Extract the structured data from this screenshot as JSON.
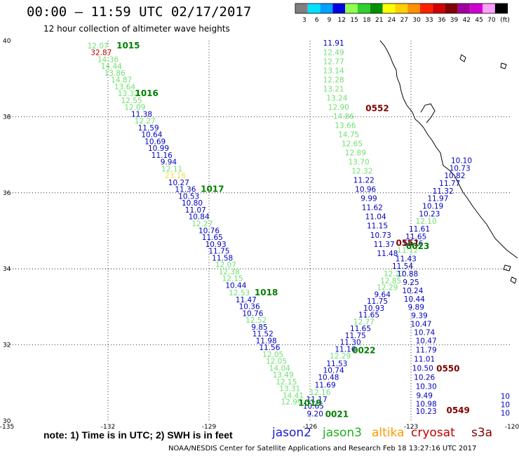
{
  "header": {
    "title": "00:00 – 11:59 UTC 02/17/2017",
    "subtitle": "12 hour collection of altimeter wave heights"
  },
  "legend": {
    "unit": "(ft)",
    "items": [
      {
        "label": "3",
        "color": "#808080"
      },
      {
        "label": "6",
        "color": "#00e0ff"
      },
      {
        "label": "9",
        "color": "#00a0ff"
      },
      {
        "label": "12",
        "color": "#0000e0"
      },
      {
        "label": "15",
        "color": "#90ff50"
      },
      {
        "label": "18",
        "color": "#30d030"
      },
      {
        "label": "21",
        "color": "#009000"
      },
      {
        "label": "24",
        "color": "#ffff00"
      },
      {
        "label": "27",
        "color": "#ffd000"
      },
      {
        "label": "30",
        "color": "#ff9000"
      },
      {
        "label": "33",
        "color": "#ff2000"
      },
      {
        "label": "36",
        "color": "#d00000"
      },
      {
        "label": "39",
        "color": "#800000"
      },
      {
        "label": "42",
        "color": "#a000a0"
      },
      {
        "label": "45",
        "color": "#d000d0"
      },
      {
        "label": "70",
        "color": "#ffa0ff"
      },
      {
        "label": "",
        "color": "#000000"
      }
    ]
  },
  "axes": {
    "x_ticks": [
      "-135",
      "-132",
      "-129",
      "-126",
      "-123",
      "-120"
    ],
    "y_ticks": [
      "40",
      "38",
      "36",
      "34",
      "32",
      "30"
    ]
  },
  "colors": {
    "jason2": "#0000c0",
    "jason3": "#20c020",
    "jason3_light": "#70e070",
    "altika": "#ff9900",
    "cryosat": "#c00000",
    "label_green": "#008000",
    "label_maroon": "#800000"
  },
  "tracks": {
    "track_a": [
      {
        "v": "12.07",
        "lon": -132.3,
        "lat": 39.8,
        "c": "jason3_light"
      },
      {
        "v": "32.87",
        "lon": -132.2,
        "lat": 39.62,
        "c": "cryosat"
      },
      {
        "v": "14.36",
        "lon": -132.0,
        "lat": 39.44,
        "c": "jason3_light"
      },
      {
        "v": "14.44",
        "lon": -131.9,
        "lat": 39.26,
        "c": "jason3_light"
      },
      {
        "v": "13.86",
        "lon": -131.8,
        "lat": 39.08,
        "c": "jason3_light"
      },
      {
        "v": "14.87",
        "lon": -131.6,
        "lat": 38.9,
        "c": "jason3_light"
      },
      {
        "v": "13.64",
        "lon": -131.5,
        "lat": 38.72,
        "c": "jason3_light"
      },
      {
        "v": "13.32",
        "lon": -131.4,
        "lat": 38.54,
        "c": "jason3_light"
      },
      {
        "v": "12.55",
        "lon": -131.3,
        "lat": 38.36,
        "c": "jason3_light"
      },
      {
        "v": "12.09",
        "lon": -131.2,
        "lat": 38.18,
        "c": "jason3_light"
      },
      {
        "v": "11.38",
        "lon": -131.0,
        "lat": 38.0,
        "c": "jason2"
      },
      {
        "v": "12.27",
        "lon": -130.9,
        "lat": 37.82,
        "c": "jason3_light"
      },
      {
        "v": "11.59",
        "lon": -130.8,
        "lat": 37.64,
        "c": "jason2"
      },
      {
        "v": "10.64",
        "lon": -130.7,
        "lat": 37.46,
        "c": "jason2"
      },
      {
        "v": "10.69",
        "lon": -130.6,
        "lat": 37.28,
        "c": "jason2"
      },
      {
        "v": "10.99",
        "lon": -130.5,
        "lat": 37.1,
        "c": "jason2"
      },
      {
        "v": "11.16",
        "lon": -130.4,
        "lat": 36.92,
        "c": "jason2"
      },
      {
        "v": "9.94",
        "lon": -130.2,
        "lat": 36.74,
        "c": "jason2"
      },
      {
        "v": "12.11",
        "lon": -130.1,
        "lat": 36.56,
        "c": "jason3_light"
      },
      {
        "v": "23.16",
        "lon": -130.0,
        "lat": 36.38,
        "c": "yellow"
      },
      {
        "v": "10.27",
        "lon": -129.9,
        "lat": 36.2,
        "c": "jason2"
      },
      {
        "v": "11.36",
        "lon": -129.7,
        "lat": 36.02,
        "c": "jason2"
      },
      {
        "v": "10.53",
        "lon": -129.6,
        "lat": 35.84,
        "c": "jason2"
      },
      {
        "v": "10.80",
        "lon": -129.5,
        "lat": 35.66,
        "c": "jason2"
      },
      {
        "v": "11.07",
        "lon": -129.4,
        "lat": 35.48,
        "c": "jason2"
      },
      {
        "v": "10.84",
        "lon": -129.3,
        "lat": 35.3,
        "c": "jason2"
      },
      {
        "v": "12.27",
        "lon": -129.2,
        "lat": 35.12,
        "c": "jason3_light"
      },
      {
        "v": "10.76",
        "lon": -129.0,
        "lat": 34.94,
        "c": "jason2"
      },
      {
        "v": "11.65",
        "lon": -128.9,
        "lat": 34.76,
        "c": "jason2"
      },
      {
        "v": "10.93",
        "lon": -128.8,
        "lat": 34.58,
        "c": "jason2"
      },
      {
        "v": "11.75",
        "lon": -128.7,
        "lat": 34.4,
        "c": "jason2"
      },
      {
        "v": "11.58",
        "lon": -128.6,
        "lat": 34.22,
        "c": "jason2"
      },
      {
        "v": "12.07",
        "lon": -128.5,
        "lat": 34.04,
        "c": "jason3_light"
      },
      {
        "v": "12.38",
        "lon": -128.4,
        "lat": 33.86,
        "c": "jason3_light"
      },
      {
        "v": "12.15",
        "lon": -128.3,
        "lat": 33.68,
        "c": "jason3_light"
      },
      {
        "v": "10.44",
        "lon": -128.2,
        "lat": 33.5,
        "c": "jason2"
      },
      {
        "v": "12.53",
        "lon": -128.1,
        "lat": 33.3,
        "c": "jason3_light"
      },
      {
        "v": "11.47",
        "lon": -127.9,
        "lat": 33.12,
        "c": "jason2"
      },
      {
        "v": "10.36",
        "lon": -127.8,
        "lat": 32.94,
        "c": "jason2"
      },
      {
        "v": "10.76",
        "lon": -127.7,
        "lat": 32.76,
        "c": "jason2"
      },
      {
        "v": "12.52",
        "lon": -127.6,
        "lat": 32.58,
        "c": "jason3_light"
      },
      {
        "v": "9.85",
        "lon": -127.5,
        "lat": 32.4,
        "c": "jason2"
      },
      {
        "v": "11.52",
        "lon": -127.4,
        "lat": 32.22,
        "c": "jason2"
      },
      {
        "v": "11.98",
        "lon": -127.3,
        "lat": 32.04,
        "c": "jason2"
      },
      {
        "v": "11.56",
        "lon": -127.2,
        "lat": 31.86,
        "c": "jason2"
      },
      {
        "v": "12.05",
        "lon": -127.1,
        "lat": 31.68,
        "c": "jason3_light"
      },
      {
        "v": "12.05",
        "lon": -127.0,
        "lat": 31.5,
        "c": "jason3_light"
      },
      {
        "v": "14.04",
        "lon": -126.9,
        "lat": 31.32,
        "c": "jason3_light"
      },
      {
        "v": "13.49",
        "lon": -126.8,
        "lat": 31.14,
        "c": "jason3_light"
      },
      {
        "v": "12.15",
        "lon": -126.7,
        "lat": 30.96,
        "c": "jason3_light"
      },
      {
        "v": "13.31",
        "lon": -126.6,
        "lat": 30.78,
        "c": "jason3_light"
      },
      {
        "v": "14.41",
        "lon": -126.5,
        "lat": 30.6,
        "c": "jason3_light"
      },
      {
        "v": "12.99",
        "lon": -126.55,
        "lat": 30.43,
        "c": "jason3_light"
      }
    ],
    "track_b": [
      {
        "v": "11.91",
        "lon": -125.3,
        "lat": 39.87,
        "c": "jason2"
      },
      {
        "v": "12.49",
        "lon": -125.3,
        "lat": 39.62,
        "c": "jason3_light"
      },
      {
        "v": "12.77",
        "lon": -125.3,
        "lat": 39.38,
        "c": "jason3_light"
      },
      {
        "v": "13.14",
        "lon": -125.3,
        "lat": 39.14,
        "c": "jason3_light"
      },
      {
        "v": "12.28",
        "lon": -125.3,
        "lat": 38.9,
        "c": "jason3_light"
      },
      {
        "v": "13.21",
        "lon": -125.3,
        "lat": 38.66,
        "c": "jason3_light"
      },
      {
        "v": "13.24",
        "lon": -125.2,
        "lat": 38.42,
        "c": "jason3_light"
      },
      {
        "v": "12.90",
        "lon": -125.15,
        "lat": 38.18,
        "c": "jason3_light"
      },
      {
        "v": "14.86",
        "lon": -125.0,
        "lat": 37.94,
        "c": "jason3_light"
      },
      {
        "v": "13.66",
        "lon": -124.95,
        "lat": 37.7,
        "c": "jason3_light"
      },
      {
        "v": "14.75",
        "lon": -124.85,
        "lat": 37.46,
        "c": "jason3_light"
      },
      {
        "v": "12.65",
        "lon": -124.75,
        "lat": 37.22,
        "c": "jason3_light"
      },
      {
        "v": "12.89",
        "lon": -124.65,
        "lat": 36.98,
        "c": "jason3_light"
      },
      {
        "v": "13.70",
        "lon": -124.55,
        "lat": 36.74,
        "c": "jason3_light"
      },
      {
        "v": "12.32",
        "lon": -124.45,
        "lat": 36.5,
        "c": "jason3_light"
      },
      {
        "v": "11.22",
        "lon": -124.4,
        "lat": 36.26,
        "c": "jason2"
      },
      {
        "v": "10.96",
        "lon": -124.35,
        "lat": 36.02,
        "c": "jason2"
      },
      {
        "v": "9.99",
        "lon": -124.25,
        "lat": 35.78,
        "c": "jason2"
      },
      {
        "v": "11.62",
        "lon": -124.15,
        "lat": 35.54,
        "c": "jason2"
      },
      {
        "v": "11.04",
        "lon": -124.05,
        "lat": 35.3,
        "c": "jason2"
      },
      {
        "v": "11.15",
        "lon": -124.0,
        "lat": 35.06,
        "c": "jason2"
      },
      {
        "v": "10.73",
        "lon": -123.9,
        "lat": 34.82,
        "c": "jason2"
      },
      {
        "v": "11.37",
        "lon": -123.8,
        "lat": 34.58,
        "c": "jason2"
      },
      {
        "v": "11.48",
        "lon": -123.7,
        "lat": 34.34,
        "c": "jason2"
      }
    ],
    "track_c": [
      {
        "v": "10.10",
        "lon": -121.5,
        "lat": 36.78,
        "c": "jason2"
      },
      {
        "v": "10.73",
        "lon": -121.55,
        "lat": 36.58,
        "c": "jason2"
      },
      {
        "v": "10.82",
        "lon": -121.7,
        "lat": 36.38,
        "c": "jason2"
      },
      {
        "v": "11.77",
        "lon": -121.85,
        "lat": 36.18,
        "c": "jason2"
      },
      {
        "v": "11.32",
        "lon": -122.05,
        "lat": 35.98,
        "c": "jason2"
      },
      {
        "v": "11.97",
        "lon": -122.2,
        "lat": 35.78,
        "c": "jason2"
      },
      {
        "v": "10.19",
        "lon": -122.35,
        "lat": 35.58,
        "c": "jason2"
      },
      {
        "v": "10.23",
        "lon": -122.45,
        "lat": 35.38,
        "c": "jason2"
      },
      {
        "v": "12.10",
        "lon": -122.55,
        "lat": 35.18,
        "c": "jason3_light"
      },
      {
        "v": "11.61",
        "lon": -122.75,
        "lat": 34.98,
        "c": "jason2"
      },
      {
        "v": "11.65",
        "lon": -122.85,
        "lat": 34.78,
        "c": "jason2"
      },
      {
        "v": "11.76",
        "lon": -122.95,
        "lat": 34.6,
        "c": "jason2"
      },
      {
        "v": "11.12",
        "lon": -123.1,
        "lat": 34.42,
        "c": "jason3_light"
      },
      {
        "v": "11.43",
        "lon": -123.15,
        "lat": 34.2,
        "c": "jason2"
      },
      {
        "v": "11.54",
        "lon": -123.25,
        "lat": 34.0,
        "c": "jason2"
      },
      {
        "v": "12.27",
        "lon": -123.5,
        "lat": 33.8,
        "c": "jason3_light"
      },
      {
        "v": "12.85",
        "lon": -123.6,
        "lat": 33.62,
        "c": "jason3_light"
      },
      {
        "v": "12.29",
        "lon": -123.7,
        "lat": 33.44,
        "c": "jason3_light"
      },
      {
        "v": "9.64",
        "lon": -123.85,
        "lat": 33.26,
        "c": "jason2"
      },
      {
        "v": "11.75",
        "lon": -124.0,
        "lat": 33.08,
        "c": "jason2"
      },
      {
        "v": "10.93",
        "lon": -124.1,
        "lat": 32.9,
        "c": "jason2"
      },
      {
        "v": "11.65",
        "lon": -124.25,
        "lat": 32.72,
        "c": "jason2"
      },
      {
        "v": "12.77",
        "lon": -124.4,
        "lat": 32.54,
        "c": "jason3_light"
      },
      {
        "v": "11.65",
        "lon": -124.5,
        "lat": 32.36,
        "c": "jason2"
      },
      {
        "v": "11.75",
        "lon": -124.65,
        "lat": 32.18,
        "c": "jason2"
      },
      {
        "v": "11.30",
        "lon": -124.8,
        "lat": 32.0,
        "c": "jason2"
      },
      {
        "v": "11.16",
        "lon": -124.95,
        "lat": 31.82,
        "c": "jason2"
      },
      {
        "v": "12.29",
        "lon": -125.1,
        "lat": 31.64,
        "c": "jason3_light"
      },
      {
        "v": "11.53",
        "lon": -125.2,
        "lat": 31.44,
        "c": "jason2"
      },
      {
        "v": "10.74",
        "lon": -125.3,
        "lat": 31.26,
        "c": "jason2"
      },
      {
        "v": "10.48",
        "lon": -125.45,
        "lat": 31.08,
        "c": "jason2"
      },
      {
        "v": "11.69",
        "lon": -125.55,
        "lat": 30.88,
        "c": "jason2"
      },
      {
        "v": "12.16",
        "lon": -125.7,
        "lat": 30.68,
        "c": "jason3_light"
      },
      {
        "v": "11.17",
        "lon": -125.8,
        "lat": 30.5,
        "c": "jason2"
      },
      {
        "v": "10.65",
        "lon": -125.9,
        "lat": 30.32,
        "c": "jason2"
      },
      {
        "v": "9.20",
        "lon": -125.85,
        "lat": 30.12,
        "c": "jason2"
      }
    ],
    "track_d": [
      {
        "v": "10.88",
        "lon": -123.1,
        "lat": 33.8,
        "c": "jason2"
      },
      {
        "v": "9.25",
        "lon": -123.0,
        "lat": 33.58,
        "c": "jason2"
      },
      {
        "v": "10.24",
        "lon": -122.95,
        "lat": 33.36,
        "c": "jason2"
      },
      {
        "v": "10.44",
        "lon": -122.9,
        "lat": 33.14,
        "c": "jason2"
      },
      {
        "v": "9.89",
        "lon": -122.85,
        "lat": 32.92,
        "c": "jason2"
      },
      {
        "v": "9.39",
        "lon": -122.75,
        "lat": 32.7,
        "c": "jason2"
      },
      {
        "v": "10.47",
        "lon": -122.7,
        "lat": 32.48,
        "c": "jason2"
      },
      {
        "v": "10.74",
        "lon": -122.6,
        "lat": 32.26,
        "c": "jason2"
      },
      {
        "v": "10.47",
        "lon": -122.55,
        "lat": 32.04,
        "c": "jason2"
      },
      {
        "v": "11.79",
        "lon": -122.55,
        "lat": 31.8,
        "c": "jason2"
      },
      {
        "v": "11.01",
        "lon": -122.6,
        "lat": 31.56,
        "c": "jason2"
      },
      {
        "v": "10.50",
        "lon": -122.65,
        "lat": 31.32,
        "c": "jason2"
      },
      {
        "v": "10.26",
        "lon": -122.6,
        "lat": 31.08,
        "c": "jason2"
      },
      {
        "v": "10.30",
        "lon": -122.55,
        "lat": 30.84,
        "c": "jason2"
      },
      {
        "v": "9.49",
        "lon": -122.6,
        "lat": 30.6,
        "c": "jason2"
      },
      {
        "v": "10.98",
        "lon": -122.55,
        "lat": 30.38,
        "c": "jason2"
      },
      {
        "v": "10.23",
        "lon": -122.55,
        "lat": 30.18,
        "c": "jason2"
      }
    ],
    "edge": [
      {
        "v": "10",
        "lon": -120.2,
        "lat": 30.58,
        "c": "jason2"
      },
      {
        "v": "10",
        "lon": -120.2,
        "lat": 30.36,
        "c": "jason2"
      },
      {
        "v": "10",
        "lon": -120.2,
        "lat": 30.14,
        "c": "jason2"
      }
    ]
  },
  "time_labels": [
    {
      "v": "1015",
      "lon": -131.4,
      "lat": 39.8,
      "c": "label_green"
    },
    {
      "v": "1016",
      "lon": -130.85,
      "lat": 38.54,
      "c": "label_green"
    },
    {
      "v": "1017",
      "lon": -128.9,
      "lat": 36.02,
      "c": "label_green"
    },
    {
      "v": "1018",
      "lon": -127.3,
      "lat": 33.3,
      "c": "label_green"
    },
    {
      "v": "1019",
      "lon": -126.0,
      "lat": 30.4,
      "c": "label_green"
    },
    {
      "v": "0552",
      "lon": -124.0,
      "lat": 38.15,
      "c": "label_maroon"
    },
    {
      "v": "0551",
      "lon": -123.1,
      "lat": 34.6,
      "c": "label_maroon"
    },
    {
      "v": "0023",
      "lon": -122.8,
      "lat": 34.52,
      "c": "label_green"
    },
    {
      "v": "0022",
      "lon": -124.4,
      "lat": 31.78,
      "c": "label_green"
    },
    {
      "v": "0021",
      "lon": -125.2,
      "lat": 30.1,
      "c": "label_green"
    },
    {
      "v": "0550",
      "lon": -121.9,
      "lat": 31.3,
      "c": "label_maroon"
    },
    {
      "v": "0549",
      "lon": -121.6,
      "lat": 30.2,
      "c": "label_maroon"
    }
  ],
  "note": "note:  1) Time is in UTC;  2) SWH is in feet",
  "satellites": [
    {
      "label": "jason2",
      "color": "#1a1ad0"
    },
    {
      "label": "jason3",
      "color": "#20b020"
    },
    {
      "label": "altika",
      "color": "#ff9900"
    },
    {
      "label": "cryosat",
      "color": "#c00000"
    },
    {
      "label": "s3a",
      "color": "#800000"
    }
  ],
  "credit": "NOAA/NESDIS Center for Satellite Applications and Research    Feb 18 13:27:16 UTC 2017"
}
